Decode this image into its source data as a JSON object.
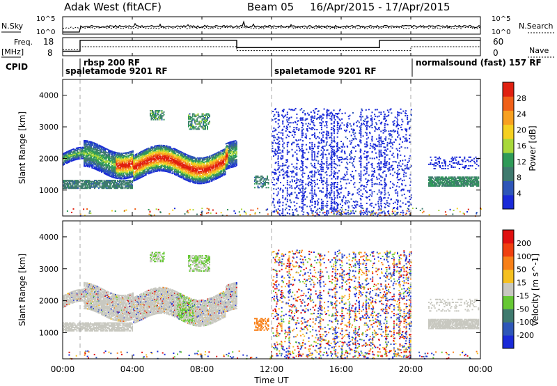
{
  "header": {
    "title": "Adak West (fitACF)",
    "beam": "Beam 05",
    "date_range": "16/Apr/2015 - 17/Apr/2015"
  },
  "noise_panel": {
    "left_label": "N.Sky",
    "right_label": "N.Search",
    "left_ticks": [
      "10^5",
      "10^0"
    ],
    "right_ticks": [
      "10^5",
      "10^0"
    ]
  },
  "freq_panel": {
    "left_label_1": "Freq.",
    "left_label_2": "[MHz]",
    "right_label": "Nave",
    "left_ticks": [
      "18",
      "8"
    ],
    "right_ticks": [
      "60",
      "0"
    ],
    "freq_segments": [
      {
        "start": 0.0,
        "end": 1.0,
        "value": 10.5
      },
      {
        "start": 1.0,
        "end": 10.0,
        "value": 16.5
      },
      {
        "start": 10.0,
        "end": 12.0,
        "value": 12.5
      },
      {
        "start": 12.0,
        "end": 18.2,
        "value": 12.5
      },
      {
        "start": 18.2,
        "end": 24.0,
        "value": 16.5
      }
    ],
    "nave_segments": [
      {
        "start": 0.0,
        "end": 1.0,
        "value": 20
      },
      {
        "start": 1.0,
        "end": 10.0,
        "value": 30
      },
      {
        "start": 10.0,
        "end": 12.0,
        "value": 17
      },
      {
        "start": 12.0,
        "end": 20.0,
        "value": 17
      },
      {
        "start": 20.0,
        "end": 24.0,
        "value": 30
      }
    ]
  },
  "cpid": {
    "label": "CPID",
    "modes": [
      {
        "text": "rbsp 200 RF",
        "start": 1.0
      },
      {
        "text": "spaletamode 9201 RF",
        "start": 0.05
      },
      {
        "text": "spaletamode 9201 RF",
        "start": 12.0
      },
      {
        "text": "normalsound (fast) 157 RF",
        "start": 20.0
      }
    ]
  },
  "chart_data": [
    {
      "type": "heatmap",
      "parameter": "Power",
      "ylabel": "Slant Range [km]",
      "ylim": [
        180,
        4500
      ],
      "y_ticks": [
        1000,
        2000,
        3000,
        4000
      ],
      "xlim": [
        0,
        24
      ],
      "colorbar": {
        "label": "Power [dB]",
        "ticks": [
          "28",
          "24",
          "20",
          "16",
          "12",
          "8",
          "4"
        ],
        "colors": [
          "#1a2ad8",
          "#2e56b8",
          "#3f7a6e",
          "#2f9a58",
          "#a8d83a",
          "#f5d020",
          "#f8a020",
          "#f06018",
          "#e02010"
        ]
      },
      "features": [
        {
          "name": "main-band",
          "t_start": 0.0,
          "t_end": 9.5,
          "range_km": [
            1600,
            2500
          ],
          "peak_db": 28
        },
        {
          "name": "upper-patch",
          "t_start": 5.0,
          "t_end": 5.8,
          "range_km": [
            3200,
            3600
          ],
          "peak_db": 12
        },
        {
          "name": "upper-patch-2",
          "t_start": 7.2,
          "t_end": 8.4,
          "range_km": [
            2900,
            3500
          ],
          "peak_db": 12
        },
        {
          "name": "low-band",
          "t_start": 0.0,
          "t_end": 4.0,
          "range_km": [
            1050,
            1350
          ],
          "peak_db": 8
        },
        {
          "name": "late-band",
          "t_start": 21.0,
          "t_end": 23.8,
          "range_km": [
            1150,
            1450
          ],
          "peak_db": 8
        }
      ]
    },
    {
      "type": "heatmap",
      "parameter": "Velocity",
      "ylabel": "Slant Range [km]",
      "ylim": [
        180,
        4500
      ],
      "y_ticks": [
        1000,
        2000,
        3000,
        4000
      ],
      "xlim": [
        0,
        24
      ],
      "colorbar": {
        "label": "Velocity [m s^-1]",
        "ticks": [
          "200",
          "100",
          "50",
          "15",
          "-15",
          "-50",
          "-100",
          "-200"
        ],
        "colors": [
          "#1a2ad8",
          "#2e56b8",
          "#3f7a6e",
          "#66c834",
          "#c8c8c0",
          "#f5c020",
          "#f88018",
          "#f04010",
          "#e01010"
        ]
      }
    }
  ],
  "time_axis": {
    "label": "Time UT",
    "ticks": [
      "00:00",
      "04:00",
      "08:00",
      "12:00",
      "16:00",
      "20:00",
      "00:00"
    ]
  }
}
